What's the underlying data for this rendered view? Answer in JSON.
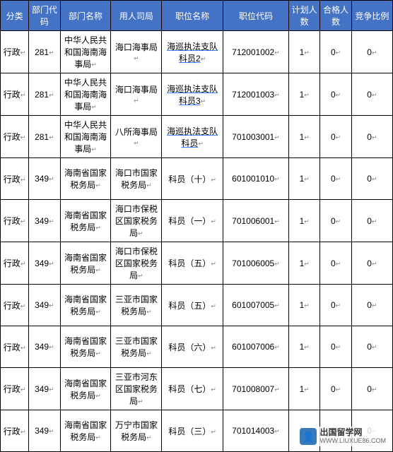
{
  "table": {
    "header_bg": "#4472c4",
    "header_color": "#ffffff",
    "border_color": "#000000",
    "headers": [
      "分类",
      "部门代码",
      "部门名称",
      "用人司局",
      "职位名称",
      "职位代码",
      "计划人数",
      "合格人数",
      "竞争比例"
    ],
    "rows": [
      {
        "cat": "行政",
        "dcode": "281",
        "dname": "中华人民共和国海南海事局",
        "dept": "海口海事局",
        "pos": "海巡执法支队科员2",
        "pos_ul": true,
        "code": "712001002",
        "plan": "1",
        "qual": "0",
        "ratio": "0"
      },
      {
        "cat": "行政",
        "dcode": "281",
        "dname": "中华人民共和国海南海事局",
        "dept": "海口海事局",
        "pos": "海巡执法支队科员3",
        "pos_ul": true,
        "code": "712001003",
        "plan": "1",
        "qual": "0",
        "ratio": "0"
      },
      {
        "cat": "行政",
        "dcode": "281",
        "dname": "中华人民共和国海南海事局",
        "dept": "八所海事局",
        "pos": "海巡执法支队科员",
        "pos_ul": true,
        "code": "701003001",
        "plan": "1",
        "qual": "0",
        "ratio": "0"
      },
      {
        "cat": "行政",
        "dcode": "349",
        "dname": "海南省国家税务局",
        "dept": "海口市国家税务局",
        "pos": "科员（十）",
        "pos_ul": false,
        "code": "601001010",
        "plan": "1",
        "qual": "0",
        "ratio": "0"
      },
      {
        "cat": "行政",
        "dcode": "349",
        "dname": "海南省国家税务局",
        "dept": "海口市保税区国家税务局",
        "pos": "科员（一）",
        "pos_ul": false,
        "code": "701006001",
        "plan": "1",
        "qual": "0",
        "ratio": "0"
      },
      {
        "cat": "行政",
        "dcode": "349",
        "dname": "海南省国家税务局",
        "dept": "海口市保税区国家税务局",
        "pos": "科员（五）",
        "pos_ul": false,
        "code": "701006005",
        "plan": "1",
        "qual": "0",
        "ratio": "0"
      },
      {
        "cat": "行政",
        "dcode": "349",
        "dname": "海南省国家税务局",
        "dept": "三亚市国家税务局",
        "pos": "科员（五）",
        "pos_ul": false,
        "code": "601007005",
        "plan": "1",
        "qual": "0",
        "ratio": "0"
      },
      {
        "cat": "行政",
        "dcode": "349",
        "dname": "海南省国家税务局",
        "dept": "三亚市国家税务局",
        "pos": "科员（六）",
        "pos_ul": false,
        "code": "601007006",
        "plan": "1",
        "qual": "0",
        "ratio": "0"
      },
      {
        "cat": "行政",
        "dcode": "349",
        "dname": "海南省国家税务局",
        "dept": "三亚市河东区国家税务局",
        "pos": "科员（七）",
        "pos_ul": false,
        "code": "701008007",
        "plan": "1",
        "qual": "0",
        "ratio": "0"
      },
      {
        "cat": "行政",
        "dcode": "349",
        "dname": "海南省国家税务局",
        "dept": "万宁市国家税务局",
        "pos": "科员（三）",
        "pos_ul": false,
        "code": "701014003",
        "plan": "1",
        "qual": "0",
        "ratio": "0"
      }
    ]
  },
  "watermark": {
    "cn": "出国留学网",
    "url": "WWW.LIUXUE86.COM"
  }
}
